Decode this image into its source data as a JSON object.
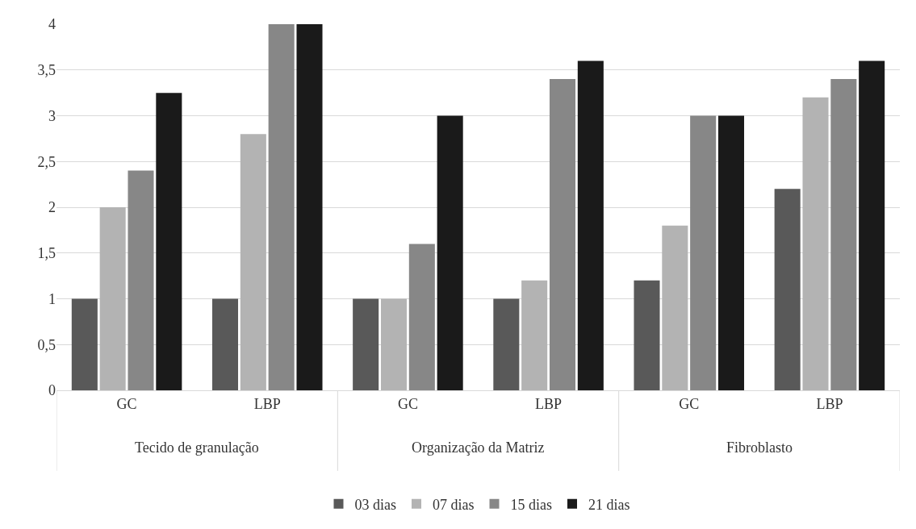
{
  "chart_data": {
    "type": "bar",
    "categories": [
      "GC",
      "LBP",
      "GC",
      "LBP",
      "GC",
      "LBP"
    ],
    "annotations": [
      "Tecido de granulação",
      "Organização da Matriz",
      "Fibroblasto"
    ],
    "series": [
      {
        "name": "03 dias",
        "color": "#595959",
        "values": [
          1,
          1,
          1,
          1,
          1.2,
          2.2
        ]
      },
      {
        "name": "07 dias",
        "color": "#b3b3b3",
        "values": [
          2,
          2.8,
          1,
          1.2,
          1.8,
          3.2
        ]
      },
      {
        "name": "15 dias",
        "color": "#878787",
        "values": [
          2.4,
          4,
          1.6,
          3.4,
          3,
          3.4
        ]
      },
      {
        "name": "21 dias",
        "color": "#1a1a1a",
        "values": [
          3.25,
          4,
          3,
          3.6,
          3,
          3.6
        ]
      }
    ],
    "ylim": [
      0,
      4
    ],
    "yticks": [
      0,
      {
        "value": 0.5,
        "label": "0,5"
      },
      1,
      {
        "value": 1.5,
        "label": "1,5"
      },
      2,
      {
        "value": 2.5,
        "label": "2,5"
      },
      3,
      {
        "value": 3.5,
        "label": "3,5"
      },
      4
    ],
    "grid": "y",
    "legend": "bottom"
  }
}
